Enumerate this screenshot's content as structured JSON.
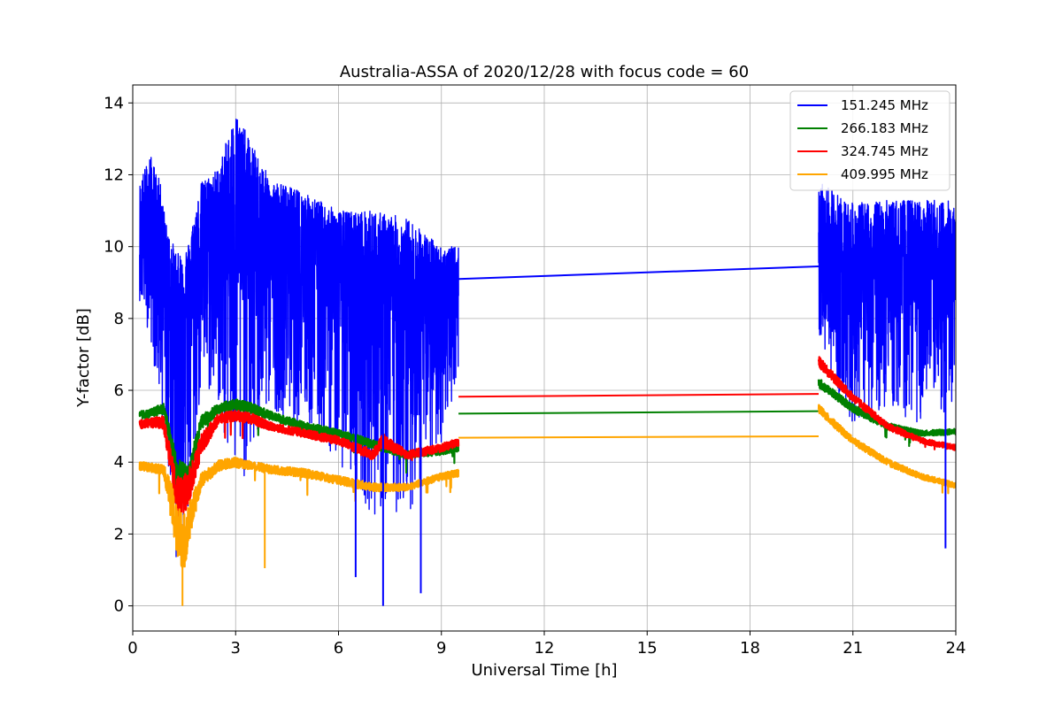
{
  "chart_data": {
    "type": "line",
    "title": "Australia-ASSA of 2020/12/28 with focus code = 60",
    "xlabel": "Universal Time [h]",
    "ylabel": "Y-factor [dB]",
    "xlim": [
      0,
      24
    ],
    "ylim": [
      -0.7,
      14.5
    ],
    "xticks": [
      0,
      3,
      6,
      9,
      12,
      15,
      18,
      21,
      24
    ],
    "yticks": [
      0,
      2,
      4,
      6,
      8,
      10,
      12,
      14
    ],
    "grid": true,
    "legend_position": "top-right",
    "series": [
      {
        "name": "151.245 MHz",
        "color": "#0000ff",
        "segments": [
          {
            "x": [
              0.2,
              0.5,
              0.8,
              1.0,
              1.3,
              1.6,
              2.0,
              2.5,
              3.0,
              3.5,
              4.0,
              5.0,
              6.0,
              7.0,
              8.0,
              9.0,
              9.5
            ],
            "y": [
              10.0,
              10.4,
              10.0,
              9.2,
              8.0,
              8.8,
              10.2,
              10.6,
              10.7,
              10.5,
              10.2,
              10.0,
              9.5,
              9.0,
              8.6,
              8.6,
              8.7
            ],
            "y_high": [
              11.8,
              12.6,
              11.8,
              10.5,
              9.8,
              10.0,
              11.8,
              12.2,
              13.8,
              12.8,
              11.9,
              11.5,
              11.0,
              11.0,
              10.8,
              10.0,
              10.0
            ],
            "y_low": [
              8.5,
              7.5,
              5.5,
              4.0,
              1.0,
              2.0,
              6.0,
              5.5,
              3.0,
              4.0,
              5.5,
              5.0,
              4.0,
              2.5,
              2.5,
              4.5,
              6.5
            ]
          },
          {
            "x": [
              9.5,
              20.0
            ],
            "y": [
              9.1,
              9.45
            ]
          },
          {
            "x": [
              20.0,
              20.5,
              21.0,
              22.0,
              23.0,
              24.0
            ],
            "y": [
              9.7,
              9.4,
              9.2,
              9.3,
              9.2,
              9.3
            ],
            "y_high": [
              11.8,
              11.5,
              11.2,
              11.3,
              11.3,
              11.3
            ],
            "y_low": [
              7.5,
              6.0,
              5.0,
              5.5,
              5.0,
              5.5
            ]
          }
        ]
      },
      {
        "name": "266.183 MHz",
        "color": "#008000",
        "segments": [
          {
            "x": [
              0.2,
              0.5,
              0.9,
              1.1,
              1.3,
              1.6,
              2.0,
              2.5,
              3.0,
              3.5,
              4.0,
              5.0,
              6.0,
              7.0,
              8.0,
              9.0,
              9.5
            ],
            "y": [
              5.3,
              5.35,
              5.5,
              4.6,
              3.6,
              3.5,
              5.1,
              5.5,
              5.6,
              5.5,
              5.3,
              5.0,
              4.8,
              4.5,
              4.2,
              4.3,
              4.4
            ],
            "spread": [
              0.12,
              0.12,
              0.15,
              0.3,
              0.5,
              0.4,
              0.2,
              0.15,
              0.15,
              0.15,
              0.12,
              0.12,
              0.12,
              0.12,
              0.1,
              0.1,
              0.1
            ]
          },
          {
            "x": [
              9.5,
              20.0
            ],
            "y": [
              5.35,
              5.42
            ]
          },
          {
            "x": [
              20.0,
              20.3,
              21.0,
              22.0,
              23.0,
              24.0
            ],
            "y": [
              6.2,
              6.0,
              5.5,
              5.0,
              4.8,
              4.85
            ],
            "spread": [
              0.15,
              0.12,
              0.12,
              0.1,
              0.08,
              0.08
            ]
          }
        ]
      },
      {
        "name": "324.745 MHz",
        "color": "#ff0000",
        "segments": [
          {
            "x": [
              0.2,
              0.5,
              0.9,
              1.1,
              1.3,
              1.6,
              2.0,
              2.5,
              3.0,
              3.5,
              4.0,
              5.0,
              6.0,
              7.0,
              7.3,
              8.0,
              9.0,
              9.5
            ],
            "y": [
              5.05,
              5.1,
              5.1,
              4.0,
              3.0,
              3.2,
              4.5,
              5.2,
              5.3,
              5.2,
              5.0,
              4.8,
              4.6,
              4.2,
              4.6,
              4.2,
              4.4,
              4.55
            ],
            "spread": [
              0.12,
              0.12,
              0.2,
              0.4,
              0.6,
              0.5,
              0.3,
              0.15,
              0.15,
              0.15,
              0.12,
              0.12,
              0.12,
              0.15,
              0.2,
              0.12,
              0.12,
              0.12
            ]
          },
          {
            "x": [
              9.5,
              20.0
            ],
            "y": [
              5.82,
              5.9
            ]
          },
          {
            "x": [
              20.0,
              20.3,
              21.0,
              22.0,
              23.0,
              24.0
            ],
            "y": [
              6.8,
              6.5,
              5.8,
              5.0,
              4.6,
              4.4
            ],
            "spread": [
              0.15,
              0.15,
              0.12,
              0.1,
              0.08,
              0.08
            ]
          }
        ]
      },
      {
        "name": "409.995 MHz",
        "color": "#ffa500",
        "segments": [
          {
            "x": [
              0.2,
              0.5,
              0.9,
              1.1,
              1.3,
              1.5,
              1.7,
              2.0,
              2.5,
              3.0,
              3.5,
              4.0,
              5.0,
              6.0,
              7.0,
              8.0,
              9.0,
              9.5
            ],
            "y": [
              3.9,
              3.85,
              3.8,
              3.0,
              2.0,
              1.8,
              2.5,
              3.5,
              3.9,
              4.0,
              3.9,
              3.8,
              3.7,
              3.5,
              3.3,
              3.3,
              3.6,
              3.7
            ],
            "spread": [
              0.12,
              0.12,
              0.15,
              0.5,
              0.8,
              0.8,
              0.5,
              0.2,
              0.15,
              0.15,
              0.12,
              0.12,
              0.12,
              0.12,
              0.12,
              0.1,
              0.1,
              0.1
            ]
          },
          {
            "x": [
              9.5,
              20.0
            ],
            "y": [
              4.68,
              4.72
            ]
          },
          {
            "x": [
              20.0,
              20.3,
              21.0,
              22.0,
              23.0,
              24.0
            ],
            "y": [
              5.5,
              5.2,
              4.6,
              4.0,
              3.6,
              3.35
            ],
            "spread": [
              0.12,
              0.12,
              0.1,
              0.1,
              0.08,
              0.08
            ]
          }
        ]
      }
    ],
    "annotations_dips": [
      {
        "series": "151.245 MHz",
        "x": 7.3,
        "y": 0.0
      },
      {
        "series": "151.245 MHz",
        "x": 6.5,
        "y": 0.8
      },
      {
        "series": "151.245 MHz",
        "x": 8.4,
        "y": 0.35
      },
      {
        "series": "151.245 MHz",
        "x": 23.7,
        "y": 1.6
      },
      {
        "series": "409.995 MHz",
        "x": 1.45,
        "y": 0.0
      },
      {
        "series": "409.995 MHz",
        "x": 3.85,
        "y": 1.05
      }
    ]
  }
}
